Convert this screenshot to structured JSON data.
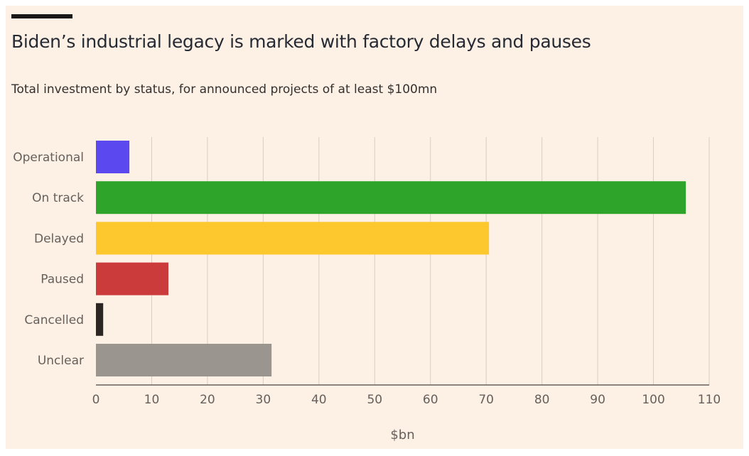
{
  "header": {
    "title": "Biden’s industrial legacy is marked with factory delays and pauses",
    "subtitle": "Total investment by status, for announced projects of at least $100mn"
  },
  "colors": {
    "background": "#fdf1e6",
    "grid": "#d9cdc2",
    "axis": "#66605c"
  },
  "chart_data": {
    "type": "bar",
    "orientation": "horizontal",
    "categories": [
      "Operational",
      "On track",
      "Delayed",
      "Paused",
      "Cancelled",
      "Unclear"
    ],
    "values": [
      6,
      105.8,
      70.5,
      13,
      1.3,
      31.5
    ],
    "colors": [
      "#5b49ef",
      "#2ea52a",
      "#fdc82e",
      "#cc3b3b",
      "#2b2523",
      "#9b9590"
    ],
    "title": "Biden’s industrial legacy is marked with factory delays and pauses",
    "subtitle": "Total investment by status, for announced projects of at least $100mn",
    "xlabel": "$bn",
    "ylabel": "",
    "xlim": [
      0,
      110
    ],
    "xticks": [
      0,
      10,
      20,
      30,
      40,
      50,
      60,
      70,
      80,
      90,
      100,
      110
    ],
    "grid": "vertical",
    "legend": "none"
  }
}
